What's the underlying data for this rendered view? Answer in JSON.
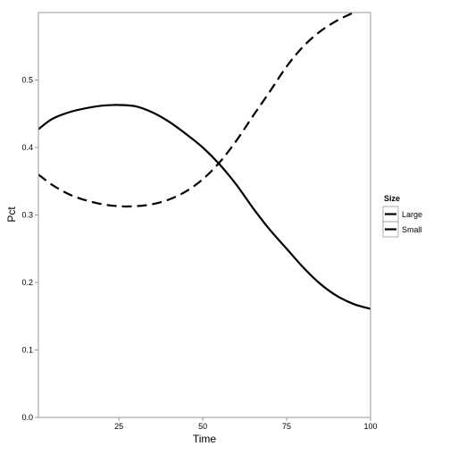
{
  "chart_data": {
    "type": "line",
    "title": "",
    "xlabel": "Time",
    "ylabel": "Pct",
    "xlim": [
      1,
      100
    ],
    "ylim": [
      0,
      0.6
    ],
    "x_ticks": [
      25,
      50,
      75,
      100
    ],
    "y_ticks": [
      0.0,
      0.1,
      0.2,
      0.3,
      0.4,
      0.5
    ],
    "y_tick_labels": [
      "0.0",
      "0.1",
      "0.2",
      "0.3",
      "0.4",
      "0.5"
    ],
    "grid": false,
    "legend": {
      "title": "Size",
      "placement": "right"
    },
    "series": [
      {
        "name": "Large",
        "line_style": "solid",
        "color": "#000000",
        "x": [
          1,
          5,
          10,
          15,
          20,
          25,
          30,
          35,
          40,
          45,
          50,
          55,
          60,
          65,
          70,
          75,
          80,
          85,
          90,
          95,
          100
        ],
        "y": [
          0.427,
          0.442,
          0.452,
          0.458,
          0.462,
          0.463,
          0.461,
          0.452,
          0.438,
          0.42,
          0.4,
          0.375,
          0.345,
          0.31,
          0.278,
          0.25,
          0.222,
          0.198,
          0.18,
          0.168,
          0.161
        ]
      },
      {
        "name": "Small",
        "line_style": "dashed",
        "color": "#000000",
        "x": [
          1,
          5,
          10,
          15,
          20,
          25,
          30,
          35,
          40,
          45,
          50,
          55,
          60,
          65,
          70,
          75,
          80,
          85,
          90,
          95,
          100
        ],
        "y": [
          0.36,
          0.345,
          0.331,
          0.322,
          0.316,
          0.313,
          0.313,
          0.316,
          0.323,
          0.335,
          0.353,
          0.378,
          0.41,
          0.447,
          0.483,
          0.52,
          0.55,
          0.572,
          0.588,
          0.6,
          0.612
        ]
      }
    ]
  }
}
